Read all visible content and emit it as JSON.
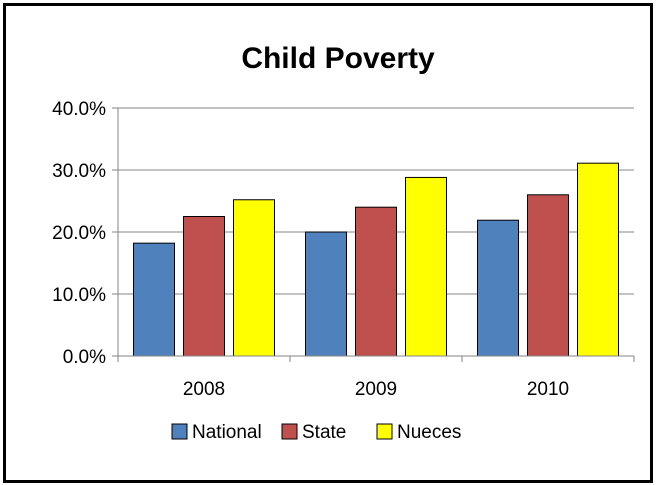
{
  "chart_data": {
    "type": "bar",
    "title": "Child Poverty",
    "categories": [
      "2008",
      "2009",
      "2010"
    ],
    "series": [
      {
        "name": "National",
        "values": [
          18.2,
          20.0,
          21.9
        ],
        "color": "#4F81BD"
      },
      {
        "name": "State",
        "values": [
          22.5,
          24.0,
          26.0
        ],
        "color": "#C0504D"
      },
      {
        "name": "Nueces",
        "values": [
          25.2,
          28.8,
          31.1
        ],
        "color": "#FFFF00"
      }
    ],
    "ylim": [
      0,
      40
    ],
    "yticks": [
      "0.0%",
      "10.0%",
      "20.0%",
      "30.0%",
      "40.0%"
    ],
    "grid": true,
    "legend_position": "bottom"
  }
}
